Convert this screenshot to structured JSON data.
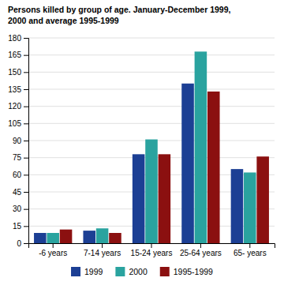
{
  "chart_data": {
    "type": "bar",
    "title": "Persons killed by group of age. January-December 1999,\n2000 and average 1995-1999",
    "categories": [
      "-6 years",
      "7-14 years",
      "15-24 years",
      "25-64 years",
      "65- years"
    ],
    "series": [
      {
        "name": "1999",
        "color": "#1c3f94",
        "values": [
          9,
          11,
          78,
          140,
          65
        ]
      },
      {
        "name": "2000",
        "color": "#2aa39f",
        "values": [
          9,
          13,
          91,
          168,
          62
        ]
      },
      {
        "name": "1995-1999",
        "color": "#8b1010",
        "values": [
          12,
          9,
          78,
          133,
          76
        ]
      }
    ],
    "ylim": [
      0,
      180
    ],
    "yticks": [
      0,
      15,
      30,
      45,
      60,
      75,
      90,
      105,
      120,
      135,
      150,
      165,
      180
    ],
    "grid": true,
    "legend": "bottom"
  }
}
